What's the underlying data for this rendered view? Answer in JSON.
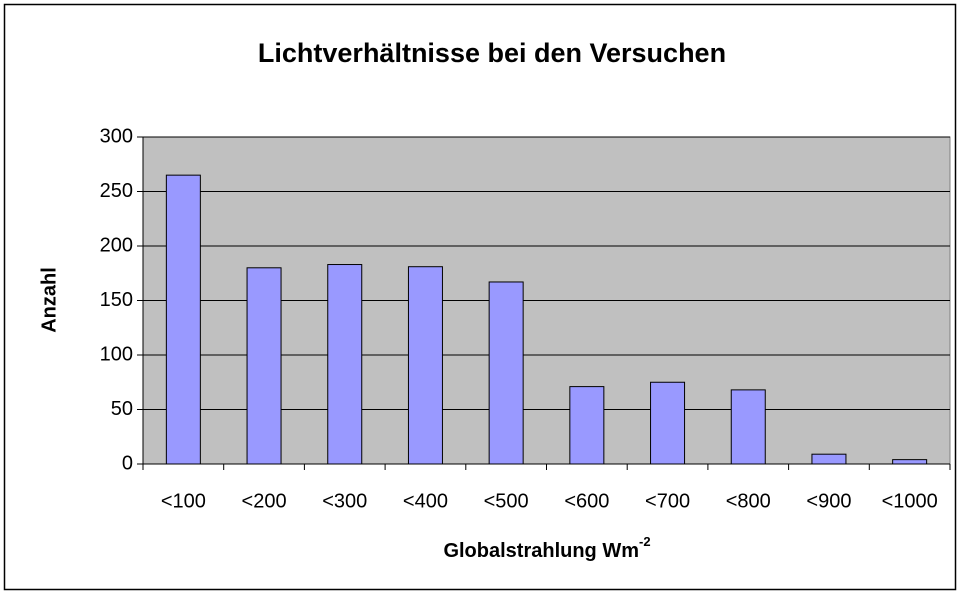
{
  "chart_data": {
    "type": "bar",
    "title": "Lichtverhältnisse bei den Versuchen",
    "x_label": "Globalstrahlung Wm",
    "x_label_superscript": "-2",
    "y_label": "Anzahl",
    "categories": [
      "<100",
      "<200",
      "<300",
      "<400",
      "<500",
      "<600",
      "<700",
      "<800",
      "<900",
      "<1000"
    ],
    "values": [
      265,
      180,
      183,
      181,
      167,
      71,
      75,
      68,
      9,
      4
    ],
    "color": "#9999ff",
    "plot_background": "#c0c0c0",
    "ylim": [
      0,
      300
    ],
    "yticks": [
      0,
      50,
      100,
      150,
      200,
      250,
      300
    ],
    "grid": true
  }
}
